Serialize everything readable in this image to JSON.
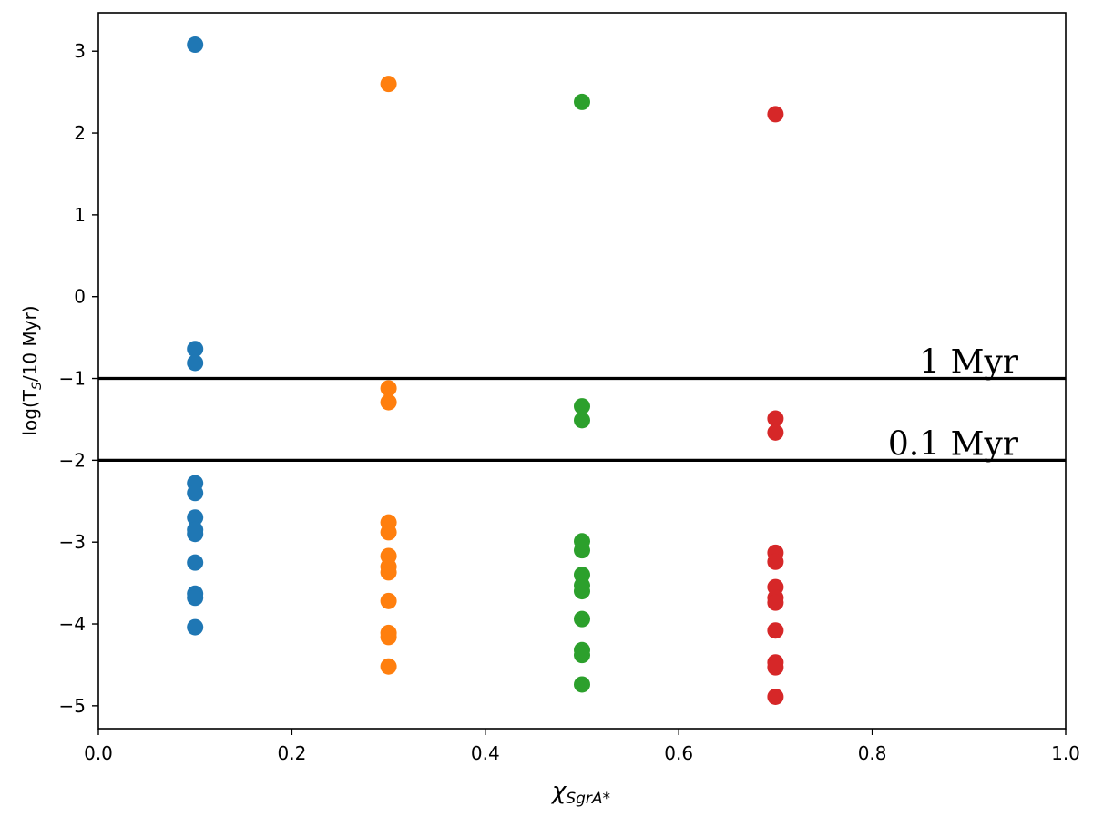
{
  "chart_data": {
    "type": "scatter",
    "title": "",
    "xlabel": "χ",
    "xlabel_sub": "SgrA*",
    "ylabel": "log(T",
    "ylabel_sub": "S",
    "ylabel_suffix": "/10 Myr)",
    "xlim": [
      0.0,
      1.0
    ],
    "ylim": [
      -5.28,
      3.47
    ],
    "xticks": [
      0.0,
      0.2,
      0.4,
      0.6,
      0.8,
      1.0
    ],
    "xtick_labels": [
      "0.0",
      "0.2",
      "0.4",
      "0.6",
      "0.8",
      "1.0"
    ],
    "yticks": [
      -5,
      -4,
      -3,
      -2,
      -1,
      0,
      1,
      2,
      3
    ],
    "ytick_labels": [
      "−5",
      "−4",
      "−3",
      "−2",
      "−1",
      "0",
      "1",
      "2",
      "3"
    ],
    "grid": false,
    "legend": false,
    "series": [
      {
        "color": "#1f77b4",
        "x": 0.1,
        "y": [
          3.08,
          -0.64,
          -0.81,
          -2.28,
          -2.4,
          -2.7,
          -2.85,
          -2.9,
          -3.25,
          -3.63,
          -3.68,
          -4.04
        ]
      },
      {
        "color": "#ff7f0e",
        "x": 0.3,
        "y": [
          2.6,
          -1.12,
          -1.29,
          -2.76,
          -2.88,
          -3.17,
          -3.3,
          -3.37,
          -3.72,
          -4.11,
          -4.16,
          -4.52
        ]
      },
      {
        "color": "#2ca02c",
        "x": 0.5,
        "y": [
          2.38,
          -1.34,
          -1.51,
          -2.99,
          -3.1,
          -3.4,
          -3.53,
          -3.6,
          -3.94,
          -4.32,
          -4.38,
          -4.74
        ]
      },
      {
        "color": "#d62728",
        "x": 0.7,
        "y": [
          2.23,
          -1.49,
          -1.66,
          -3.13,
          -3.24,
          -3.55,
          -3.68,
          -3.74,
          -4.08,
          -4.47,
          -4.53,
          -4.89
        ]
      }
    ],
    "hlines": [
      {
        "y": -1,
        "label": "1 Myr"
      },
      {
        "y": -2,
        "label": "0.1 Myr"
      }
    ]
  }
}
